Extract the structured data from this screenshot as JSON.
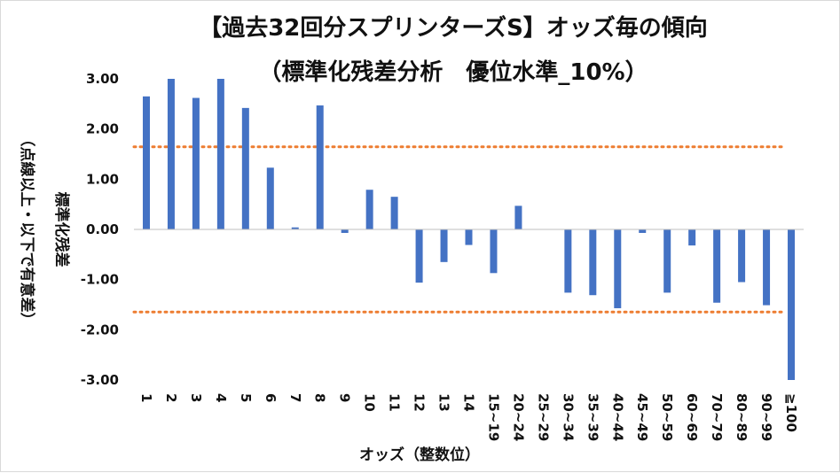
{
  "chart_data": {
    "type": "bar",
    "title": "【過去32回分スプリンターズS】オッズ毎の傾向",
    "subtitle": "（標準化残差分析　優位水準_10%）",
    "xlabel": "オッズ（整数位）",
    "ylabel": "標準化残差",
    "ylabel_note": "（点線以上・以下で有意差）",
    "ylim": [
      -3.0,
      3.0
    ],
    "yticks": [
      "3.00",
      "2.00",
      "1.00",
      "0.00",
      "-1.00",
      "-2.00",
      "-3.00"
    ],
    "categories": [
      "1",
      "2",
      "3",
      "4",
      "5",
      "6",
      "7",
      "8",
      "9",
      "10",
      "11",
      "12",
      "13",
      "14",
      "15~19",
      "20~24",
      "25~29",
      "30~34",
      "35~39",
      "40~44",
      "45~49",
      "50~59",
      "60~69",
      "70~79",
      "80~89",
      "90~99",
      "≧100"
    ],
    "values": [
      2.65,
      3.0,
      2.62,
      3.0,
      2.42,
      1.23,
      0.04,
      2.47,
      -0.07,
      0.79,
      0.65,
      -1.06,
      -0.65,
      -0.31,
      -0.87,
      0.47,
      0.0,
      -1.26,
      -1.31,
      -1.57,
      -0.07,
      -1.26,
      -0.32,
      -1.46,
      -1.05,
      -1.51,
      -3.0
    ],
    "reference_lines": [
      1.645,
      -1.645
    ],
    "colors": {
      "bar": "#4472c4",
      "reference": "#ed7d31"
    },
    "grid": false
  }
}
